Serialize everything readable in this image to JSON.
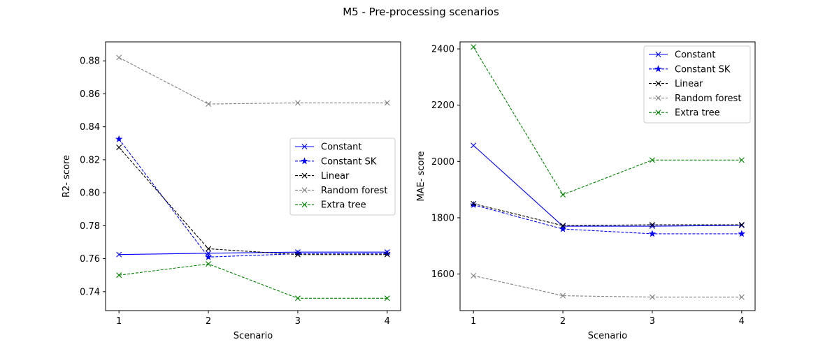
{
  "figure": {
    "title": "M5 - Pre-processing scenarios"
  },
  "chart_data": [
    {
      "type": "line",
      "xlabel": "Scenario",
      "ylabel": "R2- score",
      "x": [
        1,
        2,
        3,
        4
      ],
      "xticks": [
        "1",
        "2",
        "3",
        "4"
      ],
      "xlim": [
        0.85,
        4.15
      ],
      "ylim": [
        0.7285,
        0.8915
      ],
      "yticks": [
        0.74,
        0.76,
        0.78,
        0.8,
        0.82,
        0.84,
        0.86,
        0.88
      ],
      "ytick_labels": [
        "0.74",
        "0.76",
        "0.78",
        "0.80",
        "0.82",
        "0.84",
        "0.86",
        "0.88"
      ],
      "legend_position": "center-right",
      "grid": false,
      "series": [
        {
          "name": "Constant",
          "values": [
            0.7625,
            0.7633,
            0.764,
            0.764
          ],
          "color": "#0000ff",
          "dash": "solid",
          "marker": "x"
        },
        {
          "name": "Constant SK",
          "values": [
            0.8325,
            0.761,
            0.763,
            0.763
          ],
          "color": "#0000ff",
          "dash": "dashed",
          "marker": "star"
        },
        {
          "name": "Linear",
          "values": [
            0.8275,
            0.766,
            0.7625,
            0.7625
          ],
          "color": "#000000",
          "dash": "dashed",
          "marker": "x"
        },
        {
          "name": "Random forest",
          "values": [
            0.882,
            0.8538,
            0.8545,
            0.8545
          ],
          "color": "#808080",
          "dash": "dashed",
          "marker": "x"
        },
        {
          "name": "Extra tree",
          "values": [
            0.75,
            0.7568,
            0.736,
            0.736
          ],
          "color": "#008000",
          "dash": "dashed",
          "marker": "x"
        }
      ]
    },
    {
      "type": "line",
      "xlabel": "Scenario",
      "ylabel": "MAE- score",
      "x": [
        1,
        2,
        3,
        4
      ],
      "xticks": [
        "1",
        "2",
        "3",
        "4"
      ],
      "xlim": [
        0.85,
        4.15
      ],
      "ylim": [
        1470,
        2425
      ],
      "yticks": [
        1600,
        1800,
        2000,
        2200,
        2400
      ],
      "ytick_labels": [
        "1600",
        "1800",
        "2000",
        "2200",
        "2400"
      ],
      "legend_position": "upper-right",
      "grid": false,
      "series": [
        {
          "name": "Constant",
          "values": [
            2057,
            1770,
            1770,
            1773
          ],
          "color": "#0000ff",
          "dash": "solid",
          "marker": "x"
        },
        {
          "name": "Constant SK",
          "values": [
            1846,
            1760,
            1743,
            1743
          ],
          "color": "#0000ff",
          "dash": "dashed",
          "marker": "star"
        },
        {
          "name": "Linear",
          "values": [
            1850,
            1772,
            1775,
            1775
          ],
          "color": "#000000",
          "dash": "dashed",
          "marker": "x"
        },
        {
          "name": "Random forest",
          "values": [
            1594,
            1523,
            1518,
            1518
          ],
          "color": "#808080",
          "dash": "dashed",
          "marker": "x"
        },
        {
          "name": "Extra tree",
          "values": [
            2407,
            1882,
            2005,
            2005
          ],
          "color": "#008000",
          "dash": "dashed",
          "marker": "x"
        }
      ]
    }
  ]
}
